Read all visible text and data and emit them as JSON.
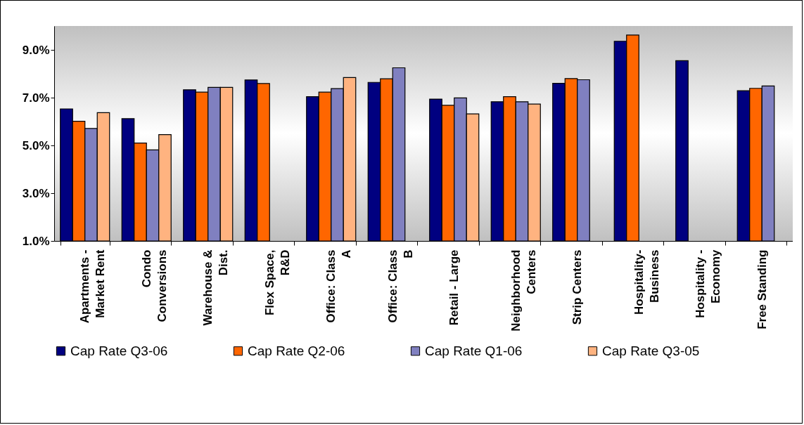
{
  "chart_data": {
    "type": "bar",
    "categories": [
      "Apartments - Market Rent",
      "Condo Conversions",
      "Warehouse & Dist.",
      "Flex Space, R&D",
      "Office: Class A",
      "Office: Class B",
      "Retail - Large",
      "Neighborhood Centers",
      "Strip Centers",
      "Hospitality-Business",
      "Hospitality - Economy",
      "Free Standing"
    ],
    "series": [
      {
        "name": "Cap Rate Q3-06",
        "color": "#000080",
        "values": [
          6.53,
          6.12,
          7.33,
          7.74,
          7.04,
          7.64,
          6.94,
          6.83,
          7.6,
          9.36,
          8.55,
          7.29
        ]
      },
      {
        "name": "Cap Rate Q2-06",
        "color": "#ff6600",
        "values": [
          6.01,
          5.1,
          7.23,
          7.59,
          7.23,
          7.79,
          6.68,
          7.04,
          7.8,
          9.62,
          null,
          7.39
        ]
      },
      {
        "name": "Cap Rate Q1-06",
        "color": "#8080c0",
        "values": [
          5.71,
          4.81,
          7.43,
          null,
          7.38,
          8.25,
          6.99,
          6.83,
          7.75,
          null,
          null,
          7.49
        ]
      },
      {
        "name": "Cap Rate Q3-05",
        "color": "#ffb380",
        "values": [
          6.37,
          5.45,
          7.43,
          null,
          7.84,
          null,
          6.32,
          6.73,
          null,
          null,
          null,
          null
        ]
      }
    ],
    "ylim": [
      1,
      10
    ],
    "yticks": [
      {
        "value": 1,
        "label": "1.0%"
      },
      {
        "value": 3,
        "label": "3.0%"
      },
      {
        "value": 5,
        "label": "5.0%"
      },
      {
        "value": 7,
        "label": "7.0%"
      },
      {
        "value": 9,
        "label": "9.0%"
      }
    ],
    "grid": false,
    "legend": "bottom"
  }
}
